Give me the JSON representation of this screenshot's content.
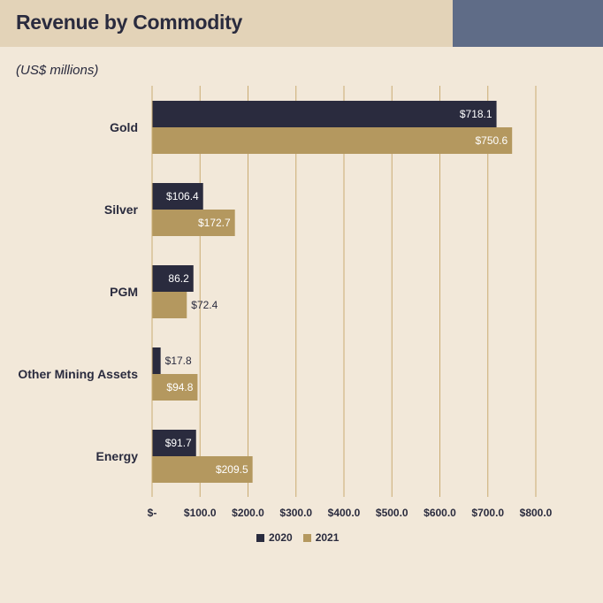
{
  "header": {
    "title": "Revenue by Commodity",
    "accent_color": "#5f6c87",
    "band_color": "#e3d3b8"
  },
  "chart_data": {
    "type": "bar",
    "orientation": "horizontal",
    "title": "Revenue by Commodity",
    "subtitle": "(US$ millions)",
    "categories": [
      "Gold",
      "Silver",
      "PGM",
      "Other Mining Assets",
      "Energy"
    ],
    "series": [
      {
        "name": "2020",
        "color": "#2a2b3e",
        "values": [
          718.1,
          106.4,
          86.2,
          17.8,
          91.7
        ],
        "labels": [
          "$718.1",
          "$106.4",
          "86.2",
          "$17.8",
          "$91.7"
        ]
      },
      {
        "name": "2021",
        "color": "#b4985f",
        "values": [
          750.6,
          172.7,
          72.4,
          94.8,
          209.5
        ],
        "labels": [
          "$750.6",
          "$172.7",
          "$72.4",
          "$94.8",
          "$209.5"
        ]
      }
    ],
    "xlim": [
      0,
      800
    ],
    "xticks": [
      0,
      100,
      200,
      300,
      400,
      500,
      600,
      700,
      800
    ],
    "xtick_labels": [
      "$-",
      "$100.0",
      "$200.0",
      "$300.0",
      "$400.0",
      "$500.0",
      "$600.0",
      "$700.0",
      "$800.0"
    ],
    "grid": true,
    "legend_position": "bottom"
  }
}
